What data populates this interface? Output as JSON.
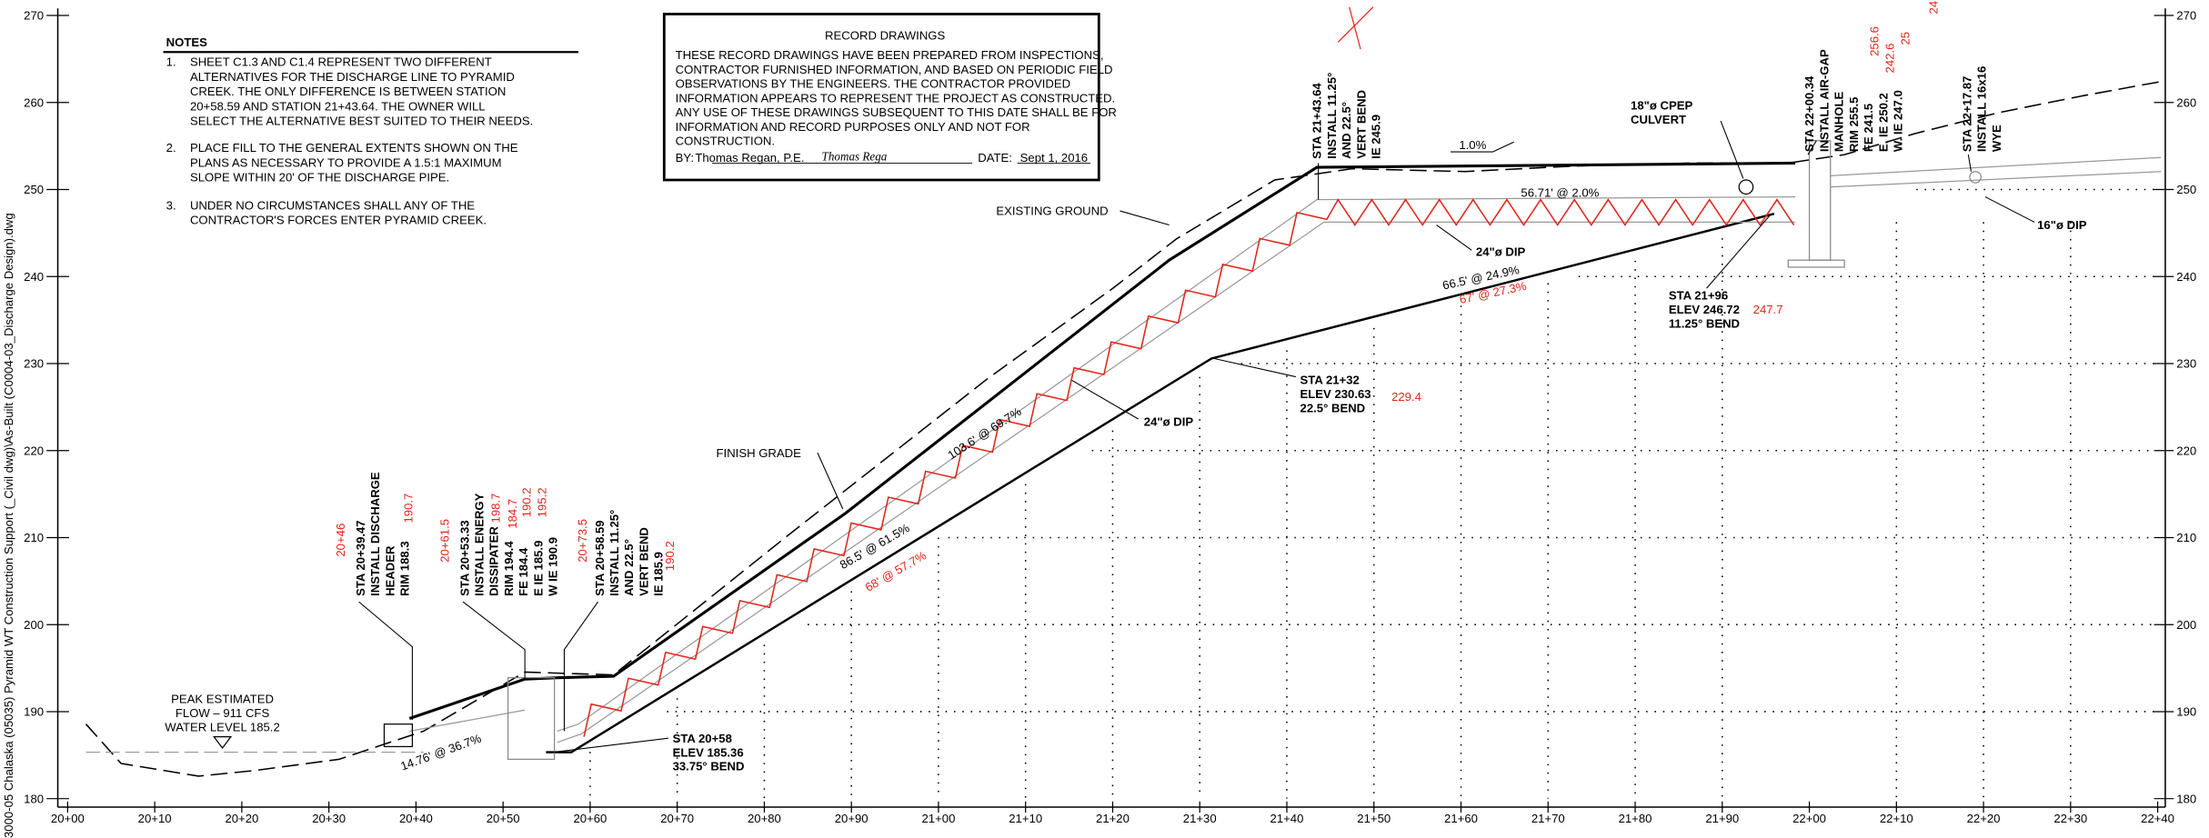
{
  "file_path": "3000-05 Chalaska (05035) Pyramid WT Construction Support (_Civil dwg)\\As-Built (C0004-03_Discharge Design).dwg",
  "notes": {
    "title": "NOTES",
    "items": [
      {
        "number": "1.",
        "lines": [
          "SHEET C1.3 AND C1.4 REPRESENT TWO DIFFERENT",
          "ALTERNATIVES FOR THE DISCHARGE LINE TO PYRAMID",
          "CREEK. THE ONLY DIFFERENCE IS BETWEEN STATION",
          "20+58.59 AND STATION 21+43.64. THE OWNER WILL",
          "SELECT THE ALTERNATIVE BEST SUITED TO THEIR NEEDS."
        ]
      },
      {
        "number": "2.",
        "lines": [
          "PLACE FILL TO THE GENERAL EXTENTS SHOWN ON THE",
          "PLANS AS NECESSARY TO PROVIDE A 1.5:1 MAXIMUM",
          "SLOPE WITHIN 20' OF THE DISCHARGE PIPE."
        ]
      },
      {
        "number": "3.",
        "lines": [
          "UNDER NO CIRCUMSTANCES SHALL ANY OF THE",
          "CONTRACTOR'S FORCES ENTER PYRAMID CREEK."
        ]
      }
    ]
  },
  "record_box": {
    "title": "RECORD DRAWINGS",
    "lines": [
      "THESE RECORD DRAWINGS HAVE BEEN PREPARED FROM INSPECTIONS,",
      "CONTRACTOR FURNISHED INFORMATION, AND BASED ON PERIODIC FIELD",
      "OBSERVATIONS BY THE ENGINEERS.  THE CONTRACTOR PROVIDED",
      "INFORMATION APPEARS TO REPRESENT THE PROJECT AS CONSTRUCTED.",
      "ANY USE OF THESE DRAWINGS SUBSEQUENT TO THIS DATE SHALL BE FOR",
      "INFORMATION AND RECORD PURPOSES ONLY AND NOT FOR",
      "CONSTRUCTION."
    ],
    "by_label": "BY:",
    "by_name": "Thomas Regan, P.E.",
    "signature": "Thomas Rega",
    "date_label": "DATE:",
    "date": "Sept 1, 2016"
  },
  "axes": {
    "elevations": [
      "270",
      "260",
      "250",
      "240",
      "230",
      "220",
      "210",
      "200",
      "190",
      "180"
    ],
    "stations": [
      "20+00",
      "20+10",
      "20+20",
      "20+30",
      "20+40",
      "20+50",
      "20+60",
      "20+70",
      "20+80",
      "20+90",
      "21+00",
      "21+10",
      "21+20",
      "21+30",
      "21+40",
      "21+50",
      "21+60",
      "21+70",
      "21+80",
      "21+90",
      "22+00",
      "22+10",
      "22+20",
      "22+30",
      "22+40"
    ]
  },
  "station_labels": [
    {
      "lines": [
        "STA 20+39.47",
        "INSTALL DISCHARGE",
        "HEADER",
        "RIM 188.3"
      ],
      "red": [
        "20+46",
        "190.7"
      ]
    },
    {
      "lines": [
        "STA 20+53.33",
        "INSTALL ENERGY",
        "DISSIPATER",
        "RIM 194.4",
        "FE 184.4",
        "E IE 185.9",
        "W IE 190.9"
      ],
      "red": [
        "20+61.5",
        "198.7",
        "184.7",
        "190.2",
        "195.2"
      ]
    },
    {
      "lines": [
        "STA 20+58.59",
        "INSTALL 11.25°",
        "AND 22.5°",
        "VERT BEND",
        "IE 185.9"
      ],
      "red": [
        "20+73.5",
        "190.2"
      ]
    },
    {
      "lines": [
        "STA 21+43.64",
        "INSTALL 11.25°",
        "AND 22.5°",
        "VERT BEND",
        "IE 245.9"
      ],
      "red": []
    },
    {
      "lines": [
        "STA 22+00.34",
        "INSTALL AIR-GAP",
        "MANHOLE",
        "RIM 255.5",
        "FE 241.5",
        "E. IE 250.2",
        "W. IE 247.0"
      ],
      "red": [
        "256.6",
        "242.6",
        "25",
        "24"
      ]
    },
    {
      "lines": [
        "STA 22+17.87",
        "INSTALL 16x16",
        "WYE"
      ],
      "red": []
    }
  ],
  "callouts": [
    {
      "lines": [
        "EXISTING GROUND"
      ]
    },
    {
      "lines": [
        "FINISH GRADE"
      ]
    },
    {
      "lines": [
        "24\"ø DIP"
      ]
    },
    {
      "lines": [
        "24\"ø DIP"
      ]
    },
    {
      "lines": [
        "18\"ø CPEP",
        "CULVERT"
      ]
    },
    {
      "lines": [
        "16\"ø DIP"
      ]
    },
    {
      "lines": [
        "STA 21+32",
        "ELEV 230.63",
        "22.5° BEND"
      ]
    },
    {
      "lines": [
        "STA 21+96",
        "ELEV 246.72",
        "11.25° BEND"
      ]
    },
    {
      "lines": [
        "STA 20+58",
        "ELEV 185.36",
        "33.75° BEND"
      ]
    },
    {
      "lines": [
        "PEAK ESTIMATED",
        "FLOW – 911 CFS",
        "WATER LEVEL 185.2"
      ]
    }
  ],
  "red_notes": [
    "229.4",
    "247.7",
    "67' @ 27.3%",
    "68' @ 57.7%"
  ],
  "slope_labels": [
    "1.0%",
    "56.71' @ 2.0%",
    "103.6' @ 69.7%",
    "86.5' @ 61.5%",
    "14.76' @ 36.7%",
    "66.5' @ 24.9%"
  ]
}
